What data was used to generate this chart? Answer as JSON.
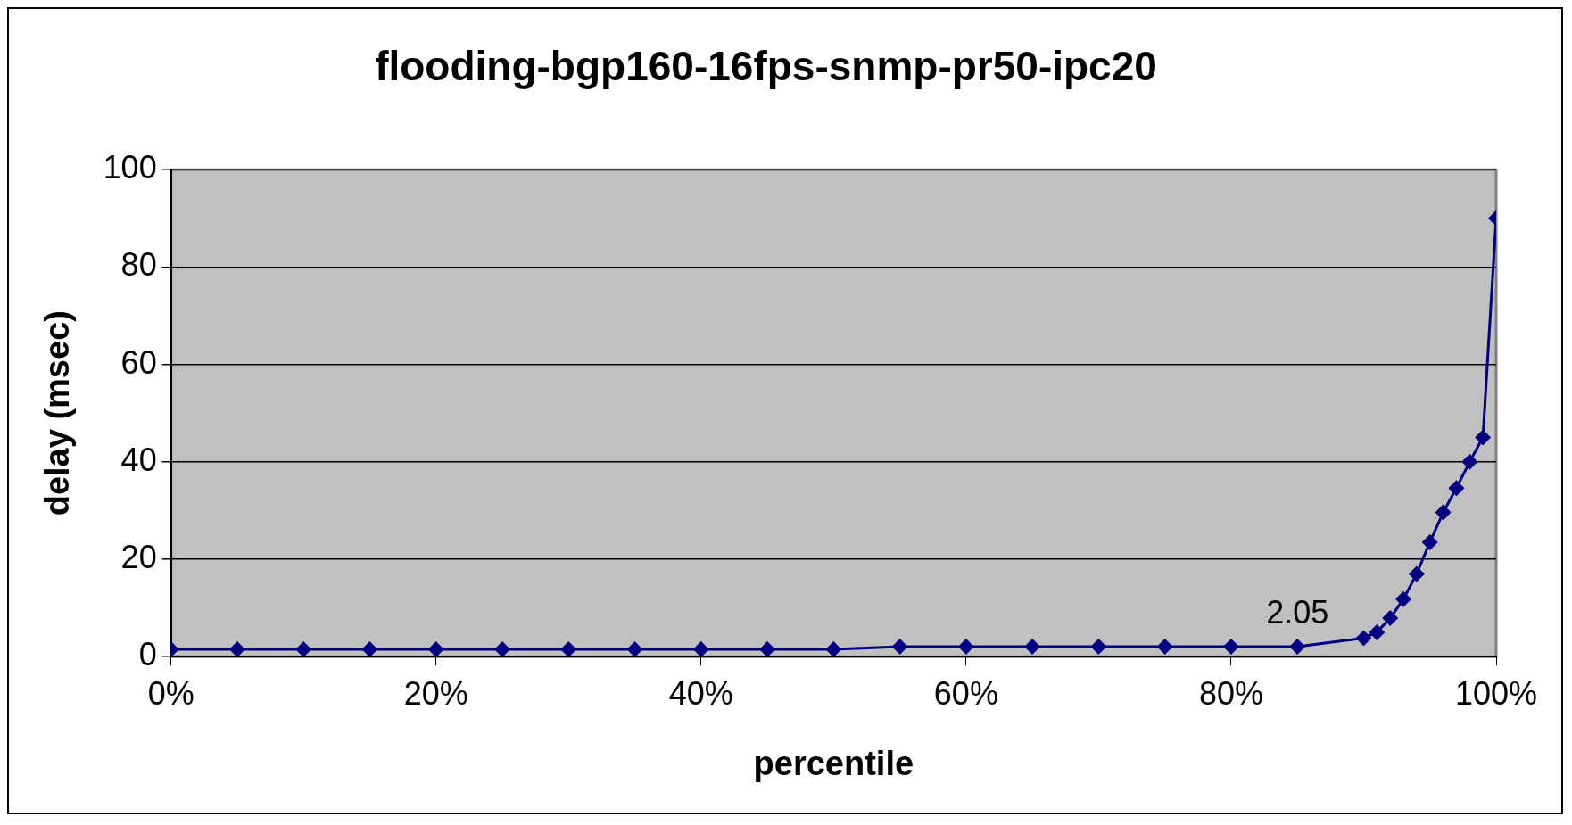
{
  "chart_data": {
    "type": "line",
    "title": "flooding-bgp160-16fps-snmp-pr50-ipc20",
    "xlabel": "percentile",
    "ylabel": "delay (msec)",
    "x": [
      0,
      5,
      10,
      15,
      20,
      25,
      30,
      35,
      40,
      45,
      50,
      55,
      60,
      65,
      70,
      75,
      80,
      85,
      90,
      91,
      92,
      93,
      94,
      95,
      96,
      97,
      98,
      99,
      100
    ],
    "series": [
      {
        "color": "#000080",
        "values": [
          1.5,
          1.5,
          1.5,
          1.5,
          1.5,
          1.5,
          1.5,
          1.5,
          1.5,
          1.5,
          1.5,
          2.05,
          2.05,
          2.05,
          2.05,
          2.05,
          2.05,
          2.05,
          3.8,
          5,
          7.9,
          11.8,
          17,
          23.5,
          29.6,
          34.6,
          40,
          45,
          90
        ],
        "value_labels": [
          null,
          null,
          null,
          null,
          null,
          null,
          null,
          null,
          null,
          null,
          null,
          null,
          null,
          null,
          null,
          null,
          null,
          "2.05",
          null,
          null,
          null,
          null,
          null,
          null,
          null,
          null,
          null,
          null,
          null
        ]
      }
    ],
    "xlim": [
      0,
      100
    ],
    "xticks": [
      {
        "value": 0,
        "label": "0%"
      },
      {
        "value": 20,
        "label": "20%"
      },
      {
        "value": 40,
        "label": "40%"
      },
      {
        "value": 60,
        "label": "60%"
      },
      {
        "value": 80,
        "label": "80%"
      },
      {
        "value": 100,
        "label": "100%"
      }
    ],
    "ylim": [
      0,
      100
    ],
    "yticks": [
      0,
      20,
      40,
      60,
      80,
      100
    ],
    "grid": "y",
    "legend": false,
    "marker": "diamond",
    "line_style": "solid"
  }
}
